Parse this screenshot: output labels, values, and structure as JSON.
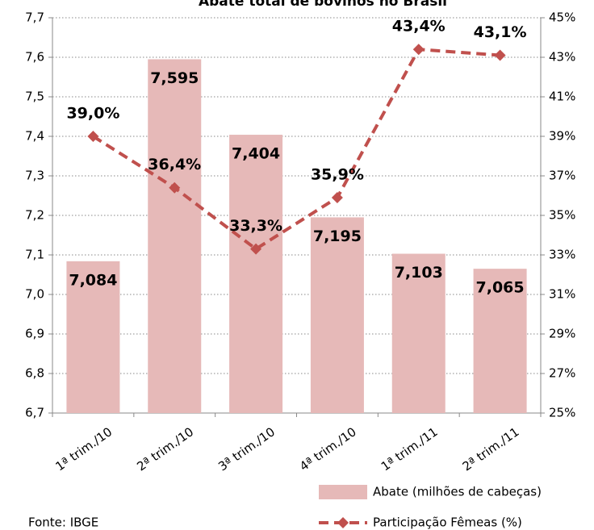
{
  "chart_data": {
    "type": "bar_line",
    "title": "Abate total de bovinos no Brasil",
    "source": "Fonte: IBGE",
    "categories": [
      "1ª trim./10",
      "2ª trim./10",
      "3ª trim./10",
      "4ª trim./10",
      "1ª trim./11",
      "2ª trim./11"
    ],
    "series": [
      {
        "name": "Abate (milhões de cabeças)",
        "type": "bar",
        "color": "#e6b9b8",
        "values": [
          7.084,
          7.595,
          7.404,
          7.195,
          7.103,
          7.065
        ],
        "value_labels": [
          "7,084",
          "7,595",
          "7,404",
          "7,195",
          "7,103",
          "7,065"
        ]
      },
      {
        "name": "Participação Fêmeas (%)",
        "type": "line",
        "axis": "y2",
        "color": "#c0504d",
        "values": [
          39.0,
          36.4,
          33.3,
          35.9,
          43.4,
          43.1
        ],
        "value_labels": [
          "39,0%",
          "36,4%",
          "33,3%",
          "35,9%",
          "43,4%",
          "43,1%"
        ]
      }
    ],
    "ylim": [
      6.7,
      7.7
    ],
    "yticks": [
      {
        "value": 6.7,
        "label": "6,7"
      },
      {
        "value": 6.8,
        "label": "6,8"
      },
      {
        "value": 6.9,
        "label": "6,9"
      },
      {
        "value": 7.0,
        "label": "7,0"
      },
      {
        "value": 7.1,
        "label": "7,1"
      },
      {
        "value": 7.2,
        "label": "7,2"
      },
      {
        "value": 7.3,
        "label": "7,3"
      },
      {
        "value": 7.4,
        "label": "7,4"
      },
      {
        "value": 7.5,
        "label": "7,5"
      },
      {
        "value": 7.6,
        "label": "7,6"
      },
      {
        "value": 7.7,
        "label": "7,7"
      }
    ],
    "y2lim": [
      25,
      45
    ],
    "y2ticks": [
      {
        "value": 25,
        "label": "25%"
      },
      {
        "value": 27,
        "label": "27%"
      },
      {
        "value": 29,
        "label": "29%"
      },
      {
        "value": 31,
        "label": "31%"
      },
      {
        "value": 33,
        "label": "33%"
      },
      {
        "value": 35,
        "label": "35%"
      },
      {
        "value": 37,
        "label": "37%"
      },
      {
        "value": 39,
        "label": "39%"
      },
      {
        "value": 41,
        "label": "41%"
      },
      {
        "value": 43,
        "label": "43%"
      },
      {
        "value": 45,
        "label": "45%"
      }
    ],
    "grid": true
  }
}
